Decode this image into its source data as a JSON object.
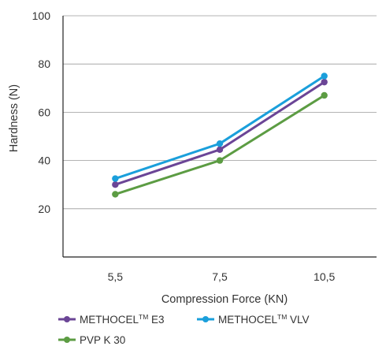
{
  "chart_data": {
    "type": "line",
    "title": "",
    "xlabel": "Compression Force (KN)",
    "ylabel": "Hardness (N)",
    "categories": [
      "5,5",
      "7,5",
      "10,5"
    ],
    "yticks": [
      20,
      40,
      60,
      80,
      100
    ],
    "ylim": [
      0,
      100
    ],
    "grid": "horizontal",
    "legend_position": "bottom-left",
    "series": [
      {
        "name": "METHOCEL™ E3",
        "legend_base": "METHOCEL",
        "legend_sup": "TM",
        "legend_suffix": " E3",
        "color": "#6b4596",
        "values": [
          30,
          44.5,
          72.5
        ]
      },
      {
        "name": "METHOCEL™ VLV",
        "legend_base": "METHOCEL",
        "legend_sup": "TM",
        "legend_suffix": " VLV",
        "color": "#1a9fdb",
        "values": [
          32.5,
          47,
          75
        ]
      },
      {
        "name": "PVP K 30",
        "legend_base": "PVP K 30",
        "legend_sup": "",
        "legend_suffix": "",
        "color": "#5c9c43",
        "values": [
          26,
          40,
          67
        ]
      }
    ]
  }
}
